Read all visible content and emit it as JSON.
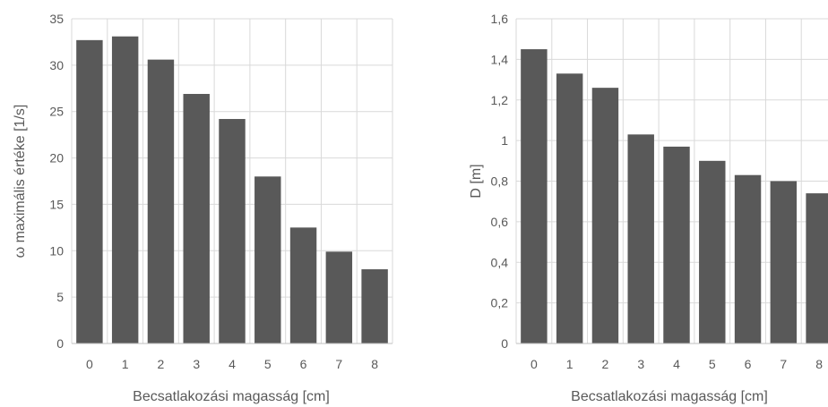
{
  "chart_data": [
    {
      "type": "bar",
      "categories": [
        "0",
        "1",
        "2",
        "3",
        "4",
        "5",
        "6",
        "7",
        "8"
      ],
      "values": [
        32.7,
        33.1,
        30.6,
        26.9,
        24.2,
        18.0,
        12.5,
        9.9,
        8.0
      ],
      "xlabel": "Becsatlakozási magasság [cm]",
      "ylabel": "ω maximális értéke [1/s]",
      "ylim": [
        0,
        35
      ],
      "yticks": [
        "0",
        "5",
        "10",
        "15",
        "20",
        "25",
        "30",
        "35"
      ],
      "grid": true,
      "bar_color": "#595959"
    },
    {
      "type": "bar",
      "categories": [
        "0",
        "1",
        "2",
        "3",
        "4",
        "5",
        "6",
        "7",
        "8"
      ],
      "values": [
        1.45,
        1.33,
        1.26,
        1.03,
        0.97,
        0.9,
        0.83,
        0.8,
        0.74
      ],
      "xlabel": "Becsatlakozási magasság [cm]",
      "ylabel": "D [m]",
      "ylim": [
        0,
        1.6
      ],
      "yticks": [
        "0",
        "0,2",
        "0,4",
        "0,6",
        "0,8",
        "1",
        "1,2",
        "1,4",
        "1,6"
      ],
      "grid": true,
      "bar_color": "#595959"
    }
  ]
}
